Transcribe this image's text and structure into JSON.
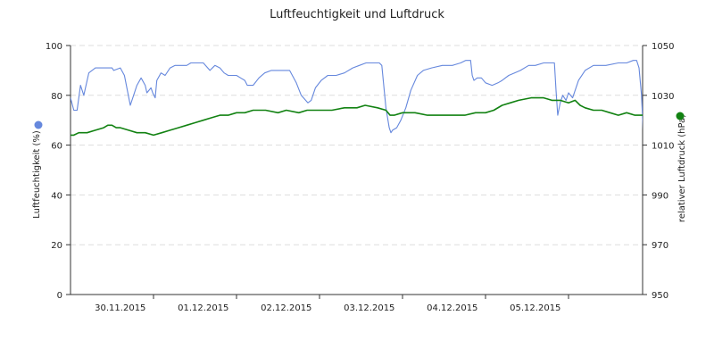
{
  "chart_data": {
    "type": "line",
    "title": "Luftfeuchtigkeit und Luftdruck",
    "x_ticks": [
      "30.11.2015",
      "01.12.2015",
      "02.12.2015",
      "03.12.2015",
      "04.12.2015",
      "05.12.2015"
    ],
    "x_range_days": [
      0,
      6.9
    ],
    "y_left": {
      "label": "Luftfeuchtigkeit (%)",
      "ticks": [
        0,
        20,
        40,
        60,
        80,
        100
      ],
      "range": [
        0,
        100
      ]
    },
    "y_right": {
      "label": "relativer Luftdruck (hPa)",
      "ticks": [
        950,
        970,
        990,
        1010,
        1030,
        1050
      ],
      "range": [
        950,
        1050
      ]
    },
    "grid": "horizontal dashed",
    "series": [
      {
        "axis": "left",
        "color": "#6688dd",
        "points": [
          [
            0.0,
            79
          ],
          [
            0.04,
            74
          ],
          [
            0.08,
            74
          ],
          [
            0.12,
            84
          ],
          [
            0.16,
            80
          ],
          [
            0.22,
            89
          ],
          [
            0.3,
            91
          ],
          [
            0.5,
            91
          ],
          [
            0.52,
            90
          ],
          [
            0.6,
            91
          ],
          [
            0.65,
            88
          ],
          [
            0.72,
            76
          ],
          [
            0.76,
            80
          ],
          [
            0.8,
            84
          ],
          [
            0.85,
            87
          ],
          [
            0.9,
            84
          ],
          [
            0.92,
            81
          ],
          [
            0.97,
            83
          ],
          [
            0.99,
            81
          ],
          [
            1.02,
            79
          ],
          [
            1.04,
            86
          ],
          [
            1.09,
            89
          ],
          [
            1.14,
            88
          ],
          [
            1.2,
            91
          ],
          [
            1.26,
            92
          ],
          [
            1.4,
            92
          ],
          [
            1.45,
            93
          ],
          [
            1.6,
            93
          ],
          [
            1.68,
            90
          ],
          [
            1.74,
            92
          ],
          [
            1.8,
            91
          ],
          [
            1.85,
            89
          ],
          [
            1.9,
            88
          ],
          [
            2.0,
            88
          ],
          [
            2.05,
            87
          ],
          [
            2.1,
            86
          ],
          [
            2.13,
            84
          ],
          [
            2.2,
            84
          ],
          [
            2.27,
            87
          ],
          [
            2.34,
            89
          ],
          [
            2.42,
            90
          ],
          [
            2.55,
            90
          ],
          [
            2.64,
            90
          ],
          [
            2.72,
            85
          ],
          [
            2.78,
            80
          ],
          [
            2.86,
            77
          ],
          [
            2.9,
            78
          ],
          [
            2.95,
            83
          ],
          [
            3.02,
            86
          ],
          [
            3.1,
            88
          ],
          [
            3.2,
            88
          ],
          [
            3.3,
            89
          ],
          [
            3.4,
            91
          ],
          [
            3.48,
            92
          ],
          [
            3.56,
            93
          ],
          [
            3.6,
            93
          ],
          [
            3.72,
            93
          ],
          [
            3.75,
            92
          ],
          [
            3.8,
            75
          ],
          [
            3.84,
            67
          ],
          [
            3.86,
            65
          ],
          [
            3.88,
            66
          ],
          [
            3.93,
            67
          ],
          [
            3.98,
            70
          ],
          [
            4.04,
            75
          ],
          [
            4.1,
            82
          ],
          [
            4.18,
            88
          ],
          [
            4.25,
            90
          ],
          [
            4.35,
            91
          ],
          [
            4.48,
            92
          ],
          [
            4.6,
            92
          ],
          [
            4.7,
            93
          ],
          [
            4.76,
            94
          ],
          [
            4.82,
            94
          ],
          [
            4.84,
            88
          ],
          [
            4.86,
            86
          ],
          [
            4.9,
            87
          ],
          [
            4.95,
            87
          ],
          [
            5.0,
            85
          ],
          [
            5.08,
            84
          ],
          [
            5.15,
            85
          ],
          [
            5.2,
            86
          ],
          [
            5.28,
            88
          ],
          [
            5.35,
            89
          ],
          [
            5.42,
            90
          ],
          [
            5.52,
            92
          ],
          [
            5.6,
            92
          ],
          [
            5.7,
            93
          ],
          [
            5.8,
            93
          ],
          [
            5.83,
            93
          ],
          [
            5.85,
            82
          ],
          [
            5.87,
            72
          ],
          [
            5.9,
            77
          ],
          [
            5.93,
            80
          ],
          [
            5.97,
            78
          ],
          [
            6.0,
            81
          ],
          [
            6.05,
            79
          ],
          [
            6.12,
            86
          ],
          [
            6.2,
            90
          ],
          [
            6.3,
            92
          ],
          [
            6.45,
            92
          ],
          [
            6.6,
            93
          ],
          [
            6.7,
            93
          ],
          [
            6.78,
            94
          ],
          [
            6.82,
            94
          ],
          [
            6.85,
            91
          ],
          [
            6.88,
            80
          ],
          [
            6.9,
            65
          ],
          [
            6.95,
            57
          ],
          [
            7.0,
            53
          ],
          [
            7.02,
            52
          ],
          [
            7.05,
            52
          ],
          [
            7.09,
            53
          ],
          [
            7.12,
            58
          ],
          [
            7.18,
            65
          ],
          [
            7.22,
            70
          ],
          [
            7.26,
            75
          ],
          [
            7.3,
            80
          ],
          [
            7.35,
            78
          ],
          [
            7.38,
            79
          ],
          [
            7.42,
            81
          ],
          [
            7.46,
            83
          ]
        ]
      },
      {
        "axis": "right",
        "color": "#128212",
        "points": [
          [
            0.0,
            1014
          ],
          [
            0.04,
            1014
          ],
          [
            0.1,
            1015
          ],
          [
            0.2,
            1015
          ],
          [
            0.3,
            1016
          ],
          [
            0.4,
            1017
          ],
          [
            0.45,
            1018
          ],
          [
            0.5,
            1018
          ],
          [
            0.55,
            1017
          ],
          [
            0.6,
            1017
          ],
          [
            0.7,
            1016
          ],
          [
            0.8,
            1015
          ],
          [
            0.9,
            1015
          ],
          [
            1.0,
            1014
          ],
          [
            1.1,
            1015
          ],
          [
            1.2,
            1016
          ],
          [
            1.3,
            1017
          ],
          [
            1.4,
            1018
          ],
          [
            1.5,
            1019
          ],
          [
            1.6,
            1020
          ],
          [
            1.7,
            1021
          ],
          [
            1.8,
            1022
          ],
          [
            1.9,
            1022
          ],
          [
            2.0,
            1023
          ],
          [
            2.1,
            1023
          ],
          [
            2.2,
            1024
          ],
          [
            2.35,
            1024
          ],
          [
            2.5,
            1023
          ],
          [
            2.6,
            1024
          ],
          [
            2.75,
            1023
          ],
          [
            2.85,
            1024
          ],
          [
            3.0,
            1024
          ],
          [
            3.15,
            1024
          ],
          [
            3.3,
            1025
          ],
          [
            3.45,
            1025
          ],
          [
            3.55,
            1026
          ],
          [
            3.7,
            1025
          ],
          [
            3.8,
            1024
          ],
          [
            3.85,
            1022
          ],
          [
            3.9,
            1022
          ],
          [
            4.0,
            1023
          ],
          [
            4.15,
            1023
          ],
          [
            4.3,
            1022
          ],
          [
            4.4,
            1022
          ],
          [
            4.5,
            1022
          ],
          [
            4.6,
            1022
          ],
          [
            4.75,
            1022
          ],
          [
            4.88,
            1023
          ],
          [
            5.0,
            1023
          ],
          [
            5.1,
            1024
          ],
          [
            5.2,
            1026
          ],
          [
            5.3,
            1027
          ],
          [
            5.4,
            1028
          ],
          [
            5.55,
            1029
          ],
          [
            5.7,
            1029
          ],
          [
            5.8,
            1028
          ],
          [
            5.9,
            1028
          ],
          [
            6.0,
            1027
          ],
          [
            6.08,
            1028
          ],
          [
            6.14,
            1026
          ],
          [
            6.2,
            1025
          ],
          [
            6.3,
            1024
          ],
          [
            6.4,
            1024
          ],
          [
            6.5,
            1023
          ],
          [
            6.6,
            1022
          ],
          [
            6.7,
            1023
          ],
          [
            6.8,
            1022
          ],
          [
            6.9,
            1022
          ],
          [
            6.95,
            1023
          ],
          [
            7.0,
            1023
          ],
          [
            7.08,
            1021
          ],
          [
            7.15,
            1021
          ],
          [
            7.24,
            1021
          ],
          [
            7.3,
            1022
          ],
          [
            7.38,
            1024
          ],
          [
            7.46,
            1024
          ]
        ]
      }
    ]
  }
}
